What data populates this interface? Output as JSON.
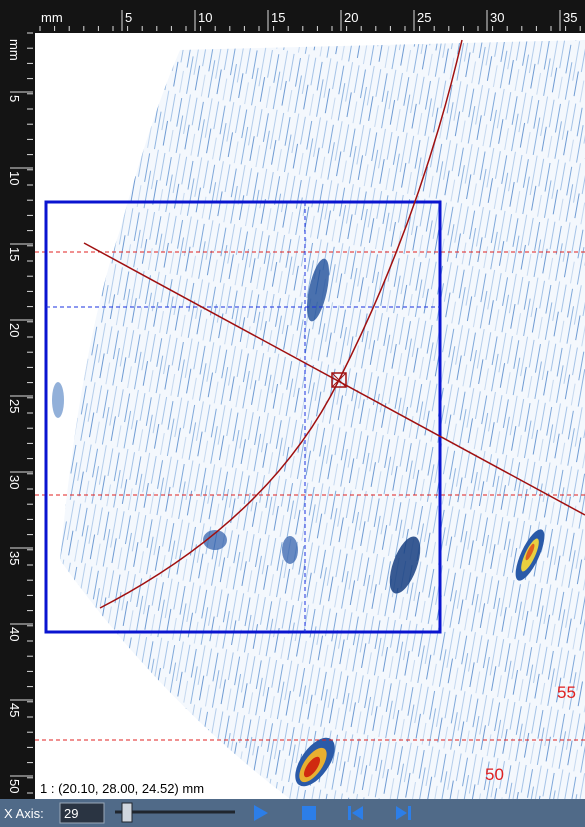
{
  "rulers": {
    "top": {
      "labels": [
        "mm",
        "5",
        "10",
        "15",
        "20",
        "25",
        "30",
        "35"
      ]
    },
    "left": {
      "labels": [
        "mm",
        "5",
        "10",
        "15",
        "20",
        "25",
        "30",
        "35",
        "40",
        "45",
        "50"
      ]
    }
  },
  "overlay": {
    "labels": [
      "55",
      "50"
    ]
  },
  "status": {
    "text": "1 : (20.10, 28.00, 24.52) mm"
  },
  "toolbar": {
    "x_axis_label": "X Axis:",
    "x_axis_value": "29"
  }
}
